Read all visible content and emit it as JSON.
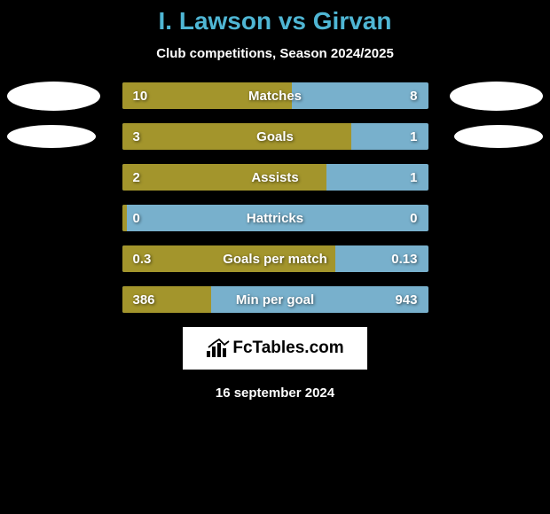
{
  "title": "I. Lawson vs Girvan",
  "subtitle": "Club competitions, Season 2024/2025",
  "colors": {
    "background": "#000000",
    "title": "#4fb6d4",
    "text": "#ffffff",
    "bar_left": "#a3952c",
    "bar_right": "#78b0cc",
    "ellipse": "#ffffff",
    "logo_bg": "#ffffff",
    "logo_text": "#000000"
  },
  "stats": [
    {
      "label": "Matches",
      "left_val": "10",
      "right_val": "8",
      "left_pct": 55.6,
      "has_ellipse": true,
      "ellipse_size": "big"
    },
    {
      "label": "Goals",
      "left_val": "3",
      "right_val": "1",
      "left_pct": 75,
      "has_ellipse": true,
      "ellipse_size": "small"
    },
    {
      "label": "Assists",
      "left_val": "2",
      "right_val": "1",
      "left_pct": 66.7,
      "has_ellipse": false
    },
    {
      "label": "Hattricks",
      "left_val": "0",
      "right_val": "0",
      "left_pct": 1.5,
      "has_ellipse": false
    },
    {
      "label": "Goals per match",
      "left_val": "0.3",
      "right_val": "0.13",
      "left_pct": 69.8,
      "has_ellipse": false
    },
    {
      "label": "Min per goal",
      "left_val": "386",
      "right_val": "943",
      "left_pct": 29.0,
      "has_ellipse": false
    }
  ],
  "logo_text": "FcTables.com",
  "date_text": "16 september 2024"
}
